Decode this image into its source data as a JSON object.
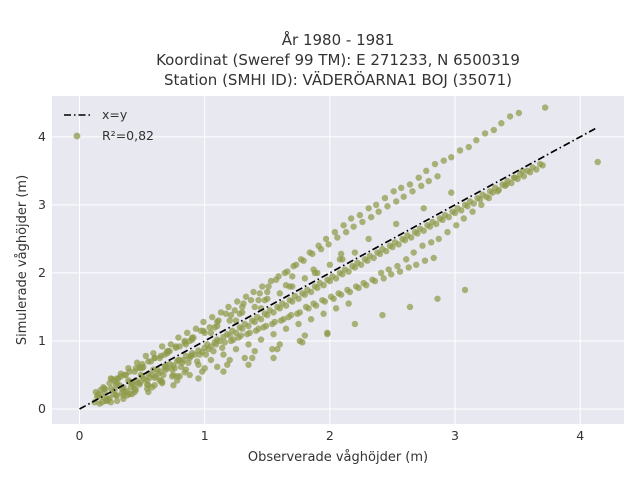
{
  "chart_data": {
    "type": "scatter",
    "title_lines": [
      "År 1980 - 1981",
      "Koordinat (Sweref 99 TM): E 271233, N 6500319",
      "Station (SMHI ID): VÄDERÖARNA1 BOJ (35071)"
    ],
    "xlabel": "Observerade våghöjder (m)",
    "ylabel": "Simulerade våghöjder (m)",
    "xlim": [
      -0.22,
      4.35
    ],
    "ylim": [
      -0.22,
      4.6
    ],
    "xticks": [
      0,
      1,
      2,
      3,
      4
    ],
    "yticks": [
      0,
      1,
      2,
      3,
      4
    ],
    "grid": true,
    "legend_position": "top-left",
    "colors": {
      "points": "#8f9a4a",
      "line": "#000000",
      "plot_bg": "#e8e8f0",
      "grid": "#ffffff"
    },
    "series": [
      {
        "name": "x=y",
        "kind": "line",
        "style": "dash-dot",
        "x": [
          0,
          4.14
        ],
        "y": [
          0,
          4.14
        ]
      },
      {
        "name": "R²=0,82",
        "kind": "scatter",
        "x": [
          0.12,
          0.15,
          0.18,
          0.2,
          0.22,
          0.25,
          0.28,
          0.3,
          0.32,
          0.35,
          0.38,
          0.4,
          0.42,
          0.45,
          0.48,
          0.5,
          0.52,
          0.55,
          0.58,
          0.6,
          0.62,
          0.65,
          0.68,
          0.7,
          0.72,
          0.75,
          0.78,
          0.8,
          0.82,
          0.85,
          0.88,
          0.9,
          0.92,
          0.95,
          0.98,
          1.0,
          1.02,
          1.05,
          1.08,
          1.1,
          1.12,
          1.15,
          1.18,
          1.2,
          1.22,
          1.25,
          1.28,
          1.3,
          1.32,
          1.35,
          1.38,
          1.4,
          1.42,
          1.45,
          1.48,
          1.5,
          1.52,
          1.55,
          1.58,
          1.6,
          1.62,
          1.65,
          1.68,
          1.7,
          1.72,
          1.75,
          1.78,
          1.8,
          1.82,
          1.85,
          1.88,
          1.9,
          1.92,
          1.95,
          1.98,
          2.0,
          2.02,
          2.05,
          2.08,
          2.1,
          2.12,
          2.15,
          2.18,
          2.2,
          2.22,
          2.25,
          2.28,
          2.3,
          2.32,
          2.35,
          2.38,
          2.4,
          2.42,
          2.45,
          2.48,
          2.5,
          2.52,
          2.55,
          2.58,
          2.6,
          2.62,
          2.65,
          2.68,
          2.7,
          2.72,
          2.75,
          2.78,
          2.8,
          2.82,
          2.85,
          2.88,
          2.9,
          2.92,
          2.95,
          2.98,
          3.0,
          3.02,
          3.05,
          3.08,
          3.1,
          3.12,
          3.15,
          3.18,
          3.2,
          3.22,
          3.25,
          3.28,
          3.3,
          3.32,
          3.35,
          3.38,
          3.4,
          3.42,
          3.45,
          3.48,
          3.5,
          3.52,
          3.55,
          3.58,
          3.6,
          3.62,
          3.65,
          3.68,
          3.7,
          3.72,
          4.14,
          0.14,
          0.17,
          0.21,
          0.24,
          0.27,
          0.31,
          0.34,
          0.37,
          0.41,
          0.44,
          0.47,
          0.51,
          0.54,
          0.57,
          0.61,
          0.64,
          0.67,
          0.71,
          0.74,
          0.77,
          0.81,
          0.84,
          0.87,
          0.91,
          0.94,
          0.97,
          1.01,
          1.04,
          1.07,
          1.11,
          1.14,
          1.17,
          1.21,
          1.24,
          1.27,
          1.31,
          1.34,
          1.37,
          1.41,
          1.44,
          1.47,
          1.51,
          1.54,
          1.57,
          1.61,
          1.64,
          1.67,
          1.71,
          1.74,
          1.77,
          1.81,
          1.84,
          1.87,
          1.91,
          1.94,
          1.97,
          2.01,
          2.04,
          2.07,
          2.11,
          2.14,
          2.17,
          2.21,
          2.24,
          2.27,
          2.31,
          2.34,
          2.37,
          2.41,
          2.44,
          2.47,
          2.51,
          2.54,
          2.57,
          2.61,
          2.64,
          2.67,
          2.71,
          2.74,
          2.77,
          2.81,
          2.84,
          2.87,
          2.91,
          2.94,
          2.97,
          3.01,
          3.04,
          3.07,
          3.11,
          3.14,
          3.17,
          3.21,
          3.24,
          3.27,
          3.31,
          3.34,
          3.37,
          3.41,
          3.44,
          3.47,
          3.51,
          3.54,
          0.16,
          0.19,
          0.23,
          0.26,
          0.29,
          0.33,
          0.36,
          0.39,
          0.43,
          0.46,
          0.49,
          0.53,
          0.56,
          0.59,
          0.63,
          0.66,
          0.69,
          0.73,
          0.76,
          0.79,
          0.83,
          0.86,
          0.89,
          0.93,
          0.96,
          0.99,
          1.03,
          1.06,
          1.09,
          1.13,
          1.16,
          1.19,
          1.23,
          1.26,
          1.29,
          1.33,
          1.36,
          1.39,
          1.43,
          1.46,
          1.49,
          1.53,
          1.56,
          1.59,
          1.63,
          1.66,
          1.69,
          1.73,
          1.76,
          1.79,
          1.83,
          1.86,
          1.89,
          1.93,
          1.96,
          1.99,
          2.03,
          2.06,
          2.09,
          2.13,
          2.16,
          2.19,
          2.23,
          2.26,
          2.29,
          2.33,
          2.36,
          2.39,
          2.43,
          2.46,
          2.49,
          2.53,
          2.56,
          2.59,
          2.63,
          2.66,
          2.69,
          2.73,
          2.76,
          2.79,
          2.83,
          2.86,
          0.2,
          0.25,
          0.3,
          0.35,
          0.4,
          0.45,
          0.5,
          0.55,
          0.6,
          0.65,
          0.7,
          0.75,
          0.8,
          0.85,
          0.9,
          0.95,
          1.0,
          1.05,
          1.1,
          1.15,
          1.2,
          1.25,
          1.3,
          1.35,
          1.4,
          1.45,
          1.5,
          1.55,
          1.6,
          1.65,
          1.7,
          1.75,
          1.8,
          1.85,
          1.9,
          1.95,
          2.0,
          2.05,
          2.1,
          2.15,
          2.2,
          0.13,
          0.22,
          0.33,
          0.44,
          0.55,
          0.66,
          0.77,
          0.88,
          0.99,
          1.1,
          1.21,
          1.32,
          1.43,
          1.54,
          1.65,
          1.76,
          1.87,
          1.98,
          2.09,
          2.2,
          2.31,
          2.42,
          2.53,
          2.64,
          2.75,
          2.86,
          2.97,
          3.08,
          0.18,
          0.28,
          0.38,
          0.48,
          0.58,
          0.68,
          0.78,
          0.88,
          0.98,
          1.08,
          1.18,
          1.28,
          1.38,
          1.48,
          1.58,
          1.68,
          1.78,
          1.88,
          1.98,
          2.08,
          0.3,
          0.4,
          0.5,
          0.6,
          0.7,
          0.8,
          0.9,
          1.0,
          1.1,
          1.2,
          1.3,
          1.4,
          1.5,
          1.6,
          1.7,
          1.8,
          0.25,
          0.35,
          0.45,
          0.55,
          0.65,
          0.75,
          0.85,
          0.95,
          1.05,
          1.15,
          1.25,
          1.35,
          1.45,
          1.55,
          0.15,
          0.2,
          0.24,
          0.29,
          0.34,
          0.39,
          0.44,
          0.49,
          0.54,
          0.59,
          0.64,
          0.69,
          0.74,
          0.79,
          0.84,
          0.89,
          0.3,
          0.36,
          0.42,
          0.48,
          0.54,
          0.6,
          0.66,
          0.72,
          0.78,
          0.84
        ],
        "y": [
          0.1,
          0.22,
          0.18,
          0.25,
          0.15,
          0.3,
          0.28,
          0.2,
          0.35,
          0.32,
          0.26,
          0.4,
          0.38,
          0.42,
          0.36,
          0.48,
          0.44,
          0.52,
          0.5,
          0.46,
          0.58,
          0.55,
          0.62,
          0.6,
          0.66,
          0.64,
          0.7,
          0.72,
          0.68,
          0.78,
          0.75,
          0.82,
          0.8,
          0.86,
          0.84,
          0.9,
          0.95,
          0.92,
          0.98,
          1.02,
          1.0,
          1.06,
          1.1,
          1.08,
          1.15,
          1.12,
          1.2,
          1.18,
          1.25,
          1.22,
          1.3,
          1.28,
          1.35,
          1.32,
          1.4,
          1.38,
          1.45,
          1.42,
          1.5,
          1.48,
          1.55,
          1.52,
          1.6,
          1.58,
          1.66,
          1.62,
          1.7,
          1.68,
          1.75,
          1.72,
          1.8,
          1.78,
          1.85,
          1.82,
          1.9,
          1.88,
          1.95,
          1.92,
          2.0,
          1.98,
          2.05,
          2.02,
          2.1,
          2.08,
          2.15,
          2.12,
          2.2,
          2.18,
          2.25,
          2.22,
          2.3,
          2.28,
          2.35,
          2.32,
          2.4,
          2.38,
          2.45,
          2.42,
          2.5,
          2.48,
          2.55,
          2.52,
          2.6,
          2.58,
          2.65,
          2.62,
          2.7,
          2.68,
          2.75,
          2.72,
          2.8,
          2.78,
          2.85,
          2.82,
          2.9,
          2.88,
          2.95,
          2.92,
          3.0,
          2.98,
          3.05,
          3.02,
          3.1,
          3.08,
          3.15,
          3.12,
          3.2,
          3.18,
          3.25,
          3.22,
          3.3,
          3.28,
          3.35,
          3.32,
          3.4,
          3.38,
          3.45,
          3.42,
          3.5,
          3.48,
          3.55,
          3.52,
          3.6,
          3.58,
          4.43,
          3.63,
          0.18,
          0.28,
          0.12,
          0.38,
          0.22,
          0.45,
          0.3,
          0.5,
          0.32,
          0.55,
          0.38,
          0.62,
          0.42,
          0.7,
          0.48,
          0.75,
          0.5,
          0.85,
          0.58,
          0.9,
          0.62,
          1.0,
          0.68,
          1.05,
          0.7,
          1.15,
          0.8,
          1.2,
          0.85,
          1.3,
          0.9,
          1.4,
          1.0,
          1.45,
          1.05,
          1.55,
          1.1,
          1.6,
          1.15,
          1.7,
          1.2,
          1.8,
          1.25,
          1.9,
          1.3,
          2.0,
          1.35,
          2.1,
          1.4,
          2.2,
          1.5,
          2.3,
          1.55,
          2.4,
          1.6,
          2.5,
          1.65,
          2.6,
          1.7,
          2.7,
          1.75,
          2.8,
          1.8,
          2.85,
          1.85,
          2.95,
          1.9,
          3.0,
          2.0,
          3.1,
          2.05,
          3.2,
          2.1,
          3.25,
          2.2,
          3.3,
          2.3,
          3.4,
          2.4,
          3.5,
          2.45,
          3.6,
          2.5,
          3.65,
          2.6,
          3.7,
          2.7,
          3.8,
          2.8,
          3.85,
          2.9,
          3.95,
          3.0,
          4.05,
          3.1,
          4.1,
          3.2,
          4.2,
          3.3,
          4.3,
          3.4,
          4.35,
          3.5,
          0.08,
          0.32,
          0.14,
          0.44,
          0.2,
          0.52,
          0.26,
          0.6,
          0.35,
          0.68,
          0.4,
          0.78,
          0.46,
          0.82,
          0.52,
          0.92,
          0.58,
          0.95,
          0.6,
          1.05,
          0.72,
          1.12,
          0.78,
          1.18,
          0.8,
          1.28,
          0.88,
          1.35,
          0.95,
          1.42,
          0.98,
          1.5,
          1.02,
          1.58,
          1.08,
          1.65,
          1.12,
          1.72,
          1.18,
          1.8,
          1.22,
          1.88,
          1.28,
          1.95,
          1.32,
          2.02,
          1.38,
          2.12,
          1.42,
          2.18,
          1.48,
          2.28,
          1.52,
          2.35,
          1.58,
          2.42,
          1.62,
          2.52,
          1.68,
          2.6,
          1.72,
          2.68,
          1.78,
          2.75,
          1.82,
          2.82,
          1.88,
          2.9,
          1.92,
          2.98,
          1.98,
          3.05,
          2.02,
          3.12,
          2.08,
          3.2,
          2.12,
          3.28,
          2.18,
          3.35,
          2.22,
          3.42,
          0.3,
          0.1,
          0.45,
          0.2,
          0.55,
          0.28,
          0.66,
          0.35,
          0.75,
          0.42,
          0.85,
          0.5,
          0.92,
          0.58,
          1.02,
          0.65,
          1.12,
          0.72,
          1.22,
          0.8,
          1.3,
          0.88,
          1.42,
          0.95,
          1.5,
          1.02,
          1.62,
          1.1,
          1.7,
          1.18,
          1.8,
          1.25,
          1.92,
          1.32,
          2.0,
          1.4,
          2.12,
          1.48,
          2.2,
          1.55,
          2.3,
          0.25,
          0.12,
          0.48,
          0.25,
          0.7,
          0.38,
          0.92,
          0.5,
          1.15,
          0.62,
          1.38,
          0.75,
          1.6,
          0.88,
          1.82,
          1.0,
          2.05,
          1.12,
          2.28,
          1.25,
          2.5,
          1.38,
          2.72,
          1.5,
          2.95,
          1.62,
          3.18,
          1.75,
          0.1,
          0.42,
          0.2,
          0.6,
          0.32,
          0.8,
          0.42,
          1.0,
          0.55,
          1.2,
          0.65,
          1.4,
          0.75,
          1.6,
          0.88,
          1.8,
          0.98,
          2.0,
          1.1,
          2.2,
          0.38,
          0.22,
          0.6,
          0.35,
          0.82,
          0.48,
          1.05,
          0.6,
          1.28,
          0.72,
          1.5,
          0.85,
          1.72,
          0.95,
          1.95,
          1.08,
          0.45,
          0.15,
          0.6,
          0.25,
          0.78,
          0.35,
          0.95,
          0.45,
          1.12,
          0.55,
          1.3,
          0.65,
          1.48,
          0.75,
          0.2,
          0.3,
          0.16,
          0.36,
          0.24,
          0.42,
          0.3,
          0.5,
          0.36,
          0.58,
          0.42,
          0.64,
          0.48,
          0.72,
          0.54,
          0.78,
          0.12,
          0.5,
          0.22,
          0.62,
          0.3,
          0.75,
          0.4,
          0.85,
          0.48,
          0.98
        ]
      }
    ]
  }
}
